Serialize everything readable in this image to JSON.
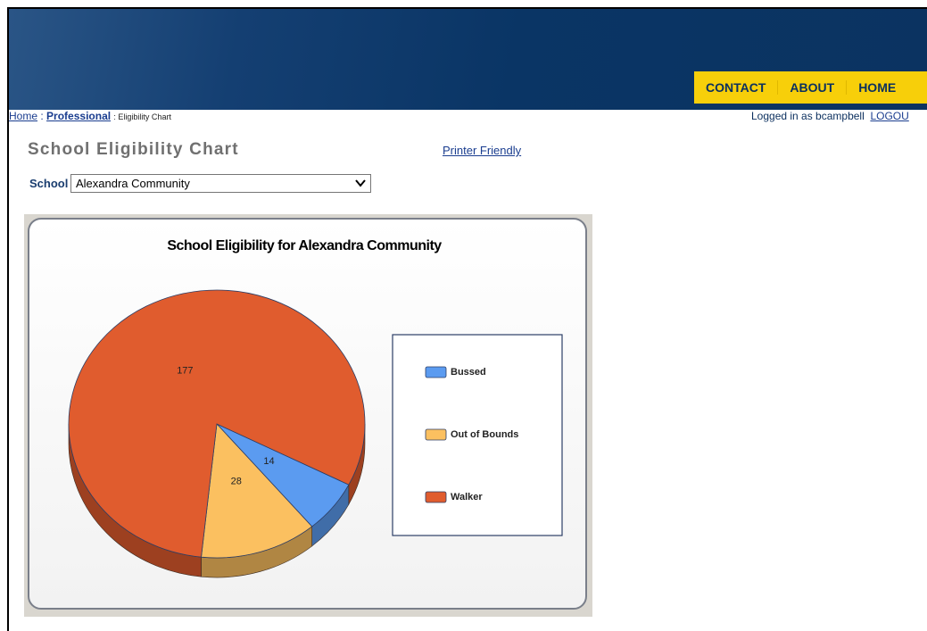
{
  "nav": [
    "CONTACT",
    "ABOUT",
    "HOME"
  ],
  "breadcrumb": {
    "home": "Home",
    "separator": ":",
    "professional": "Professional",
    "current": ": Eligibility Chart"
  },
  "login": {
    "text": "Logged in as bcampbell",
    "logout": "LOGOU"
  },
  "page_title": "School Eligibility Chart",
  "printer_link": "Printer Friendly",
  "school_label": "School",
  "school_selected": "Alexandra Community",
  "chart_data": {
    "type": "pie",
    "title": "School Eligibility for Alexandra Community",
    "categories": [
      "Bussed",
      "Out of Bounds",
      "Walker"
    ],
    "values": [
      14,
      28,
      177
    ],
    "colors": [
      "#5b9bf0",
      "#fbc060",
      "#e05c2e"
    ],
    "legend": "right"
  }
}
